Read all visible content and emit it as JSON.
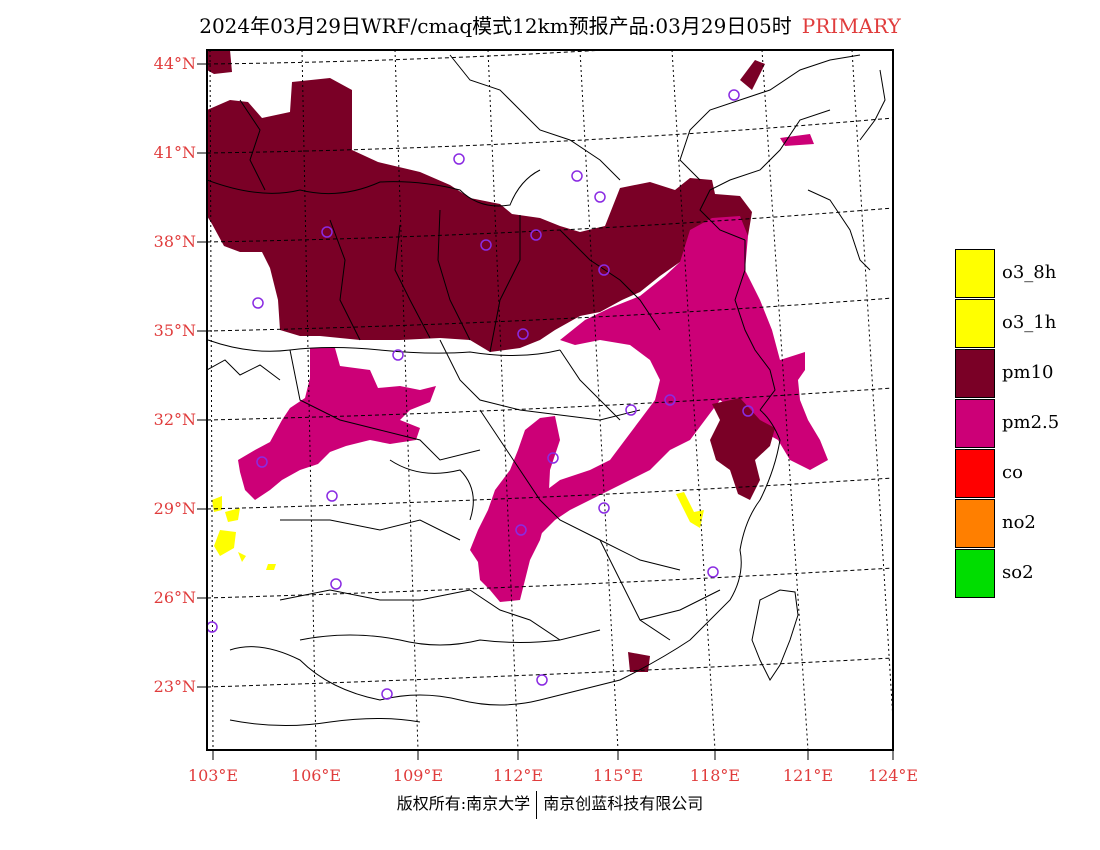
{
  "title": {
    "main": "2024年03月29日WRF/cmaq模式12km预报产品:03月29日05时",
    "tag": "PRIMARY"
  },
  "axes": {
    "lat_labels": [
      "44°N",
      "41°N",
      "38°N",
      "35°N",
      "32°N",
      "29°N",
      "26°N",
      "23°N"
    ],
    "lon_labels": [
      "103°E",
      "106°E",
      "109°E",
      "112°E",
      "115°E",
      "118°E",
      "121°E",
      "124°E"
    ]
  },
  "legend": [
    {
      "label": "o3_8h",
      "color": "#ffff00"
    },
    {
      "label": "o3_1h",
      "color": "#ffff00"
    },
    {
      "label": "pm10",
      "color": "#7a0026"
    },
    {
      "label": "pm2.5",
      "color": "#cc0077"
    },
    {
      "label": "co",
      "color": "#ff0000"
    },
    {
      "label": "no2",
      "color": "#ff7f00"
    },
    {
      "label": "so2",
      "color": "#00dd00"
    }
  ],
  "footer": {
    "left": "版权所有:南京大学",
    "right": "南京创蓝科技有限公司"
  }
}
